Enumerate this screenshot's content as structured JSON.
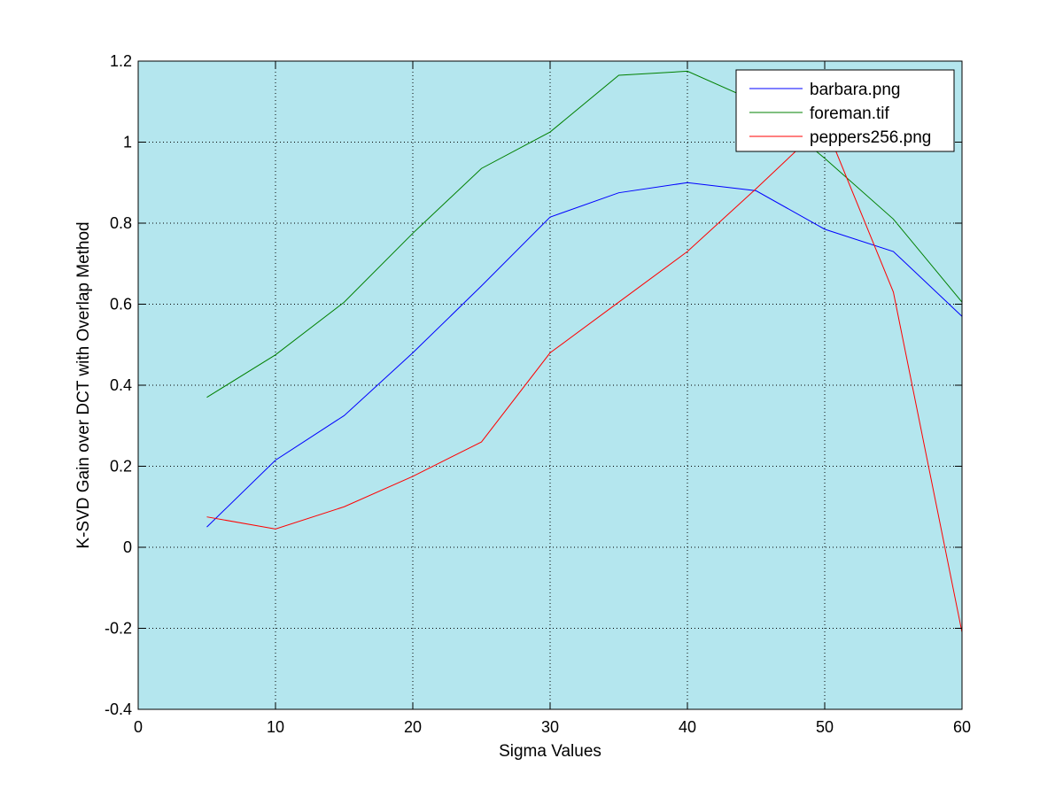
{
  "chart_data": {
    "type": "line",
    "title": "",
    "xlabel": "Sigma Values",
    "ylabel": "K-SVD Gain over DCT with Overlap Method",
    "xlim": [
      0,
      60
    ],
    "ylim": [
      -0.4,
      1.2
    ],
    "xticks": [
      0,
      10,
      20,
      30,
      40,
      50,
      60
    ],
    "xtick_labels": [
      "0",
      "10",
      "20",
      "30",
      "40",
      "50",
      "60"
    ],
    "yticks": [
      -0.4,
      -0.2,
      0,
      0.2,
      0.4,
      0.6,
      0.8,
      1,
      1.2
    ],
    "ytick_labels": [
      "-0.4",
      "-0.2",
      "0",
      "0.2",
      "0.4",
      "0.6",
      "0.8",
      "1",
      "1.2"
    ],
    "grid": true,
    "legend_position": "top-right",
    "plot_background": "#b4e6ee",
    "x": [
      5,
      10,
      15,
      20,
      25,
      30,
      35,
      40,
      45,
      50,
      55,
      60
    ],
    "series": [
      {
        "name": "barbara.png",
        "color": "#0000ff",
        "values": [
          0.05,
          0.215,
          0.325,
          0.48,
          0.645,
          0.815,
          0.875,
          0.9,
          0.88,
          0.785,
          0.73,
          0.57
        ]
      },
      {
        "name": "foreman.tif",
        "color": "#008000",
        "values": [
          0.37,
          0.475,
          0.605,
          0.775,
          0.935,
          1.025,
          1.165,
          1.175,
          1.1,
          0.96,
          0.81,
          0.605
        ]
      },
      {
        "name": "peppers256.png",
        "color": "#ff0000",
        "values": [
          0.075,
          0.045,
          0.1,
          0.175,
          0.26,
          0.48,
          0.605,
          0.73,
          0.885,
          1.045,
          0.63,
          -0.21
        ]
      }
    ]
  }
}
